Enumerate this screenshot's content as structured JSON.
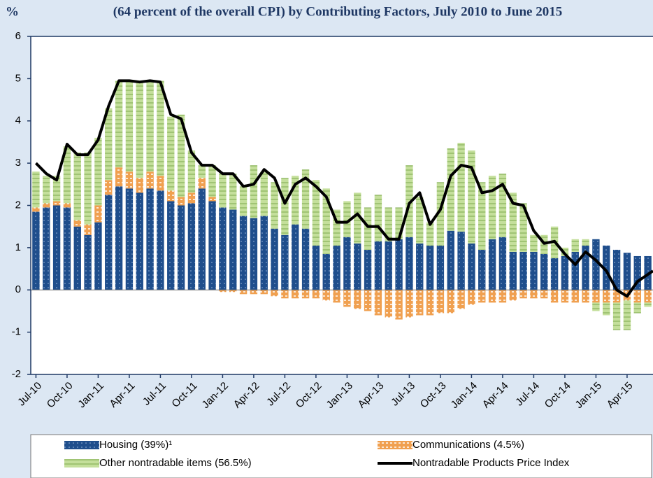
{
  "chart_data": {
    "type": "bar",
    "stacked": true,
    "title": "(64 percent of the overall CPI) by Contributing Factors, July 2010 to June 2015",
    "y_label": "%",
    "ylim": [
      -2,
      6
    ],
    "yticks": [
      -2,
      -1,
      0,
      1,
      2,
      3,
      4,
      5,
      6
    ],
    "categories": [
      "Jul-10",
      null,
      null,
      "Oct-10",
      null,
      null,
      "Jan-11",
      null,
      null,
      "Apr-11",
      null,
      null,
      "Jul-11",
      null,
      null,
      "Oct-11",
      null,
      null,
      "Jan-12",
      null,
      null,
      "Apr-12",
      null,
      null,
      "Jul-12",
      null,
      null,
      "Oct-12",
      null,
      null,
      "Jan-13",
      null,
      null,
      "Apr-13",
      null,
      null,
      "Jul-13",
      null,
      null,
      "Oct-13",
      null,
      null,
      "Jan-14",
      null,
      null,
      "Apr-14",
      null,
      null,
      "Jul-14",
      null,
      null,
      "Oct-14",
      null,
      null,
      "Jan-15",
      null,
      null,
      "Apr-15",
      null,
      null
    ],
    "series": [
      {
        "name": "Housing (39%)¹",
        "color": "#1f4e8c",
        "pattern": "dots",
        "values": [
          1.85,
          1.95,
          2.0,
          1.95,
          1.5,
          1.3,
          1.6,
          2.25,
          2.45,
          2.4,
          2.3,
          2.4,
          2.35,
          2.1,
          2.0,
          2.05,
          2.4,
          2.1,
          1.95,
          1.9,
          1.75,
          1.7,
          1.75,
          1.45,
          1.3,
          1.55,
          1.45,
          1.05,
          0.85,
          1.05,
          1.25,
          1.1,
          0.95,
          1.15,
          1.15,
          1.2,
          1.25,
          1.1,
          1.05,
          1.05,
          1.4,
          1.38,
          1.1,
          0.95,
          1.2,
          1.25,
          0.9,
          0.9,
          0.9,
          0.85,
          0.75,
          0.8,
          0.9,
          1.05,
          1.2,
          1.05,
          0.95,
          0.88,
          0.8,
          0.8
        ]
      },
      {
        "name": "Communications (4.5%)",
        "color": "#f0a050",
        "pattern": "dashes",
        "values": [
          0.1,
          0.1,
          0.1,
          0.1,
          0.15,
          0.25,
          0.4,
          0.35,
          0.45,
          0.4,
          0.35,
          0.4,
          0.35,
          0.25,
          0.2,
          0.25,
          0.25,
          0.1,
          -0.05,
          -0.05,
          -0.1,
          -0.1,
          -0.1,
          -0.15,
          -0.2,
          -0.2,
          -0.2,
          -0.2,
          -0.25,
          -0.3,
          -0.4,
          -0.45,
          -0.5,
          -0.6,
          -0.65,
          -0.7,
          -0.65,
          -0.6,
          -0.6,
          -0.55,
          -0.55,
          -0.45,
          -0.35,
          -0.3,
          -0.3,
          -0.3,
          -0.25,
          -0.2,
          -0.2,
          -0.2,
          -0.3,
          -0.3,
          -0.3,
          -0.3,
          -0.3,
          -0.3,
          -0.3,
          -0.25,
          -0.3,
          -0.3
        ]
      },
      {
        "name": "Other nontradable items (56.5%)",
        "color": "#c4df9b",
        "pattern": "lines",
        "values": [
          0.85,
          0.65,
          0.6,
          1.35,
          1.6,
          1.7,
          1.6,
          1.7,
          2.05,
          2.15,
          2.3,
          2.15,
          2.25,
          1.75,
          1.95,
          1.0,
          0.3,
          0.75,
          0.8,
          0.85,
          0.7,
          1.25,
          1.05,
          1.1,
          1.35,
          1.15,
          1.4,
          1.55,
          1.55,
          0.85,
          0.85,
          1.2,
          1.0,
          1.1,
          0.8,
          0.75,
          1.7,
          1.1,
          0.55,
          1.5,
          1.95,
          2.1,
          2.2,
          1.6,
          1.5,
          1.5,
          1.4,
          1.15,
          0.4,
          0.45,
          0.75,
          0.2,
          0.3,
          0.15,
          -0.2,
          -0.3,
          -0.65,
          -0.7,
          -0.25,
          -0.1
        ]
      },
      {
        "name": "Nontradable Products Price Index",
        "color": "#000000",
        "type": "line",
        "values": [
          3.0,
          2.75,
          2.6,
          3.45,
          3.2,
          3.2,
          3.55,
          4.35,
          4.95,
          4.95,
          4.92,
          4.95,
          4.92,
          4.15,
          4.05,
          3.25,
          2.95,
          2.95,
          2.75,
          2.75,
          2.45,
          2.5,
          2.85,
          2.65,
          2.05,
          2.5,
          2.65,
          2.45,
          2.2,
          1.6,
          1.6,
          1.8,
          1.5,
          1.5,
          1.2,
          1.2,
          2.05,
          2.3,
          1.55,
          1.9,
          2.7,
          2.95,
          2.9,
          2.3,
          2.35,
          2.5,
          2.05,
          2.0,
          1.4,
          1.1,
          1.15,
          0.85,
          0.6,
          0.9,
          0.7,
          0.45,
          0.0,
          -0.15,
          0.2,
          0.45
        ]
      }
    ]
  }
}
